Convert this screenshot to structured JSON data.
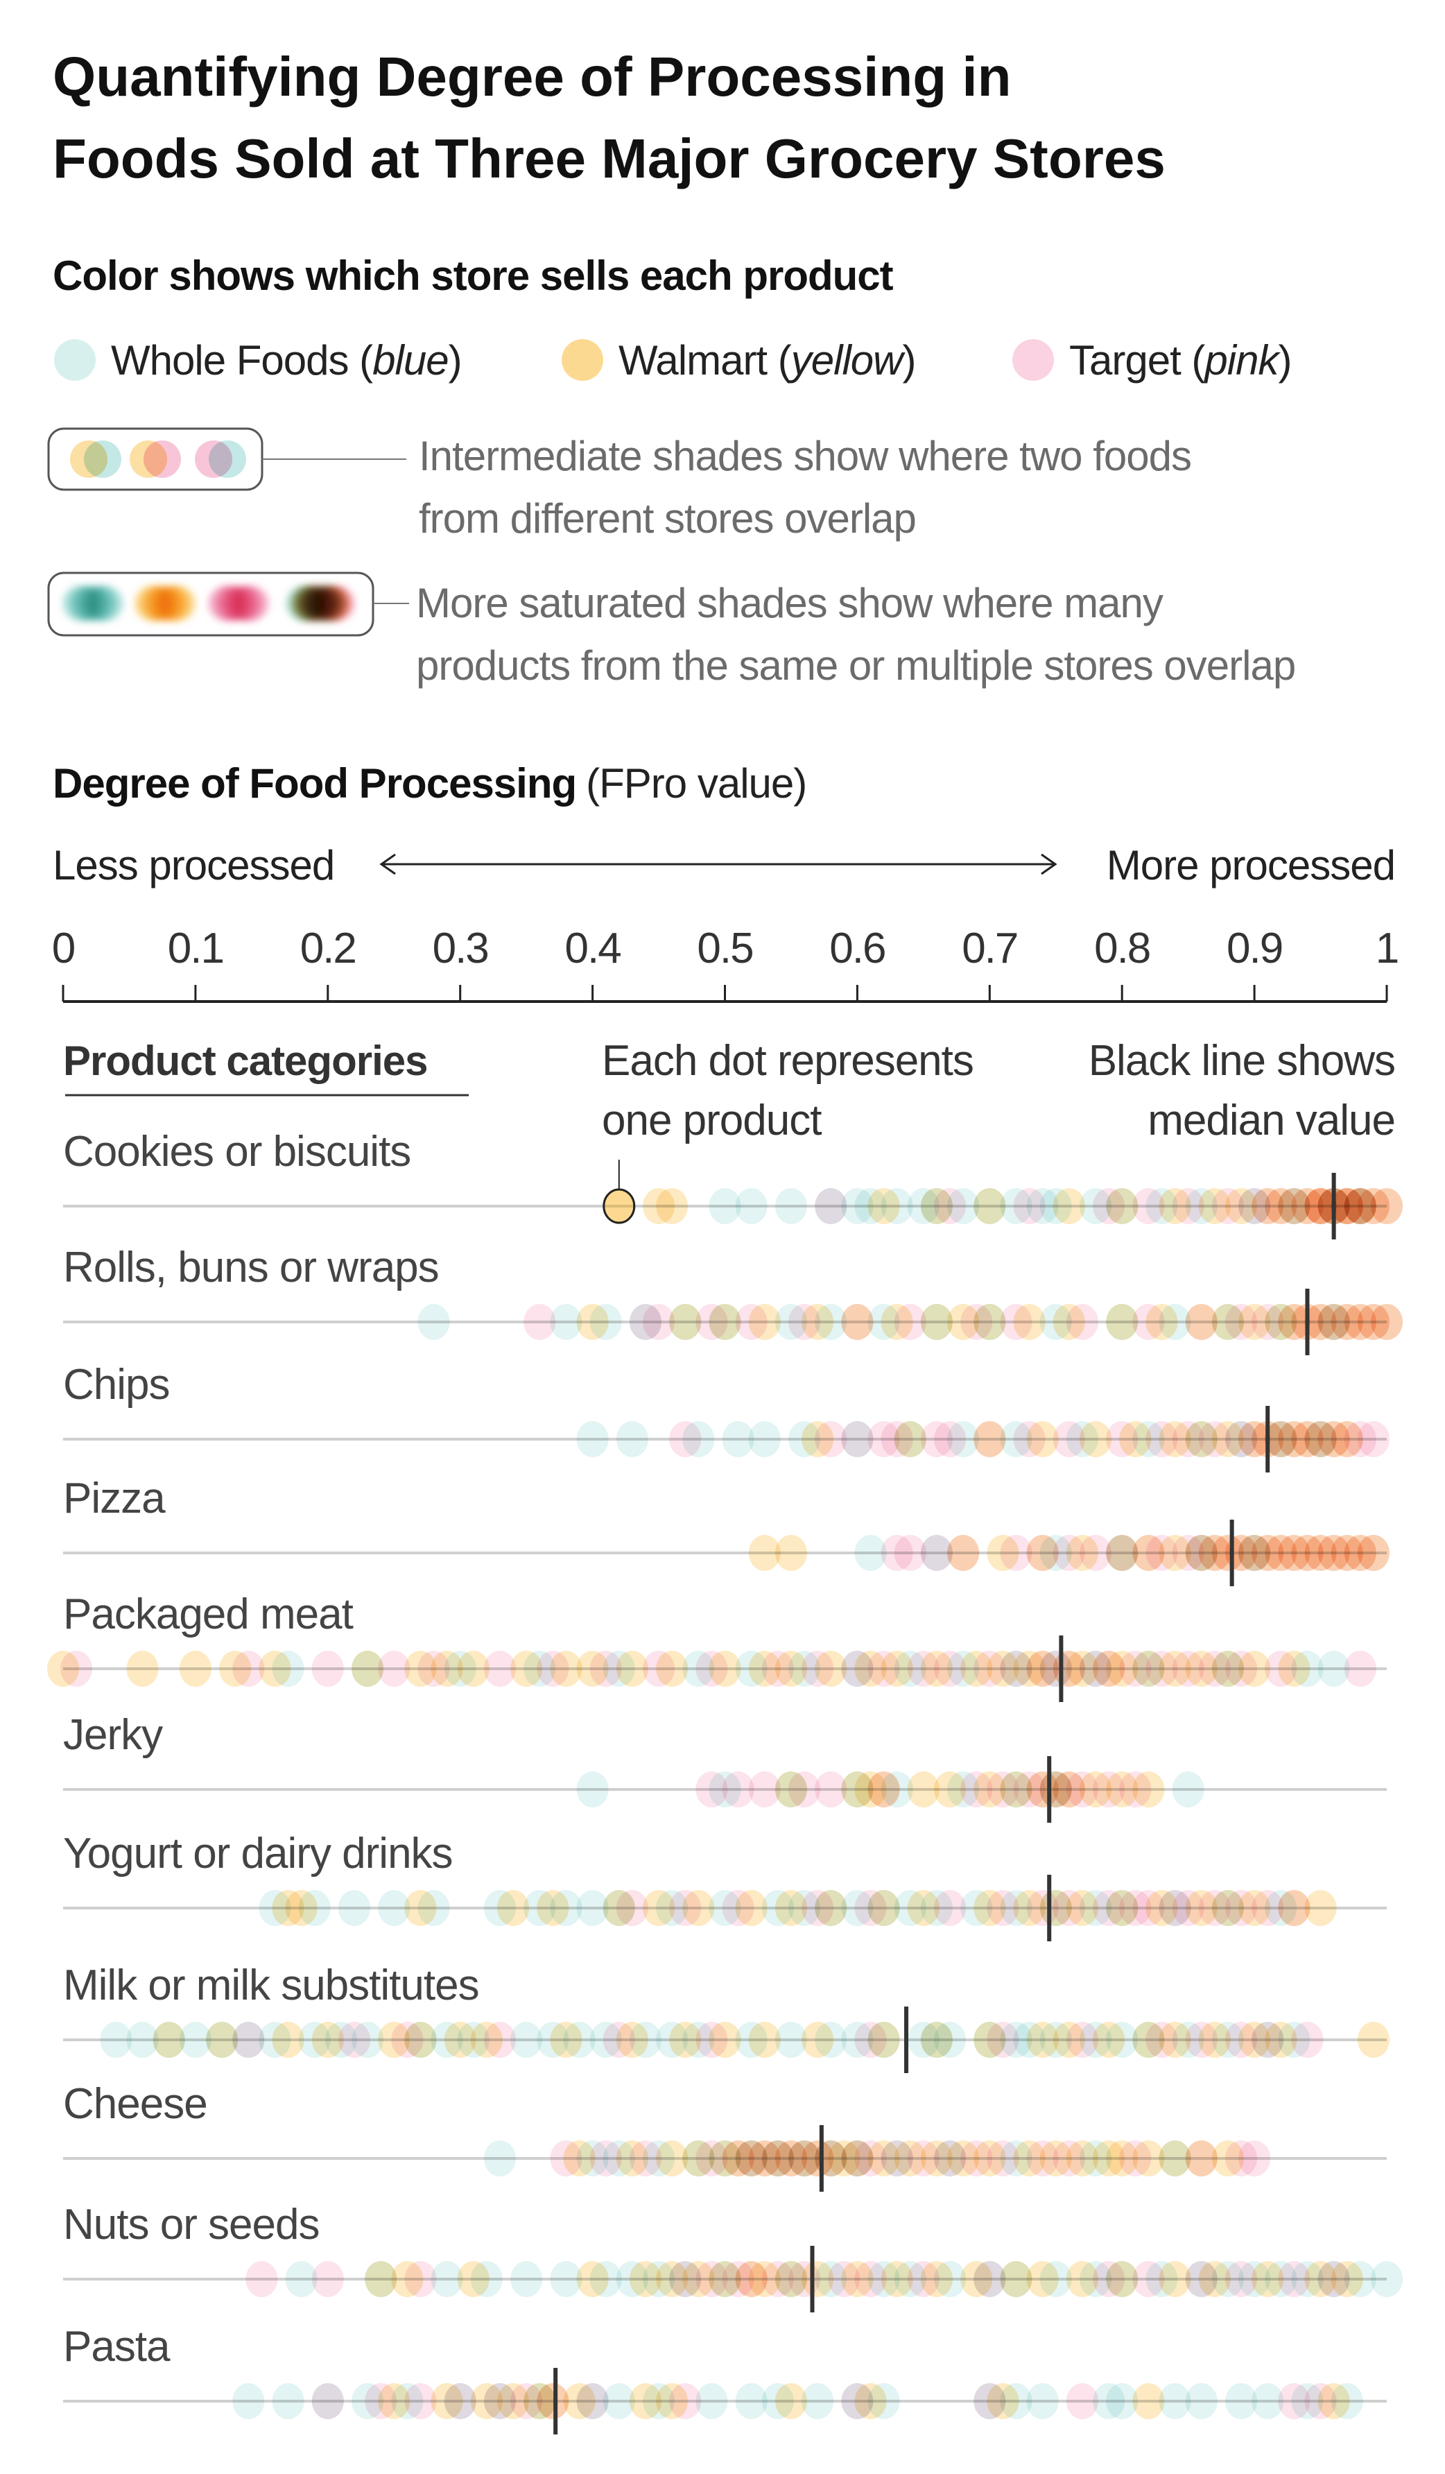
{
  "title": {
    "line1": "Quantifying Degree of Processing in",
    "line2": "Foods Sold at Three Major Grocery Stores"
  },
  "legend": {
    "heading": "Color shows which store sells each product",
    "stores": [
      {
        "name": "Whole Foods",
        "color_word": "blue",
        "color": "#7ccdc7"
      },
      {
        "name": "Walmart",
        "color_word": "yellow",
        "color": "#f9b934"
      },
      {
        "name": "Target",
        "color_word": "pink",
        "color": "#f07ea8"
      }
    ],
    "intermediate_line1": "Intermediate shades show where two foods",
    "intermediate_line2": "from different stores overlap",
    "saturated_line1": "More saturated shades show where many",
    "saturated_line2": "products from the same or multiple stores overlap"
  },
  "chart_data": {
    "type": "scatter",
    "title": "Degree of Food Processing",
    "title_suffix": "(FPro value)",
    "less_label": "Less processed",
    "more_label": "More processed",
    "xlim": [
      0,
      1
    ],
    "ticks": [
      "0",
      "0.1",
      "0.2",
      "0.3",
      "0.4",
      "0.5",
      "0.6",
      "0.7",
      "0.8",
      "0.9",
      "1"
    ],
    "categories_heading": "Product categories",
    "annotation_dot": "Each dot represents one product",
    "annotation_dot_line1": "Each dot represents",
    "annotation_dot_line2": "one product",
    "annotation_median_line1": "Black line shows",
    "annotation_median_line2": "median value",
    "highlighted_product": {
      "category": "Cookies or biscuits",
      "store": "Walmart",
      "value": 0.42
    },
    "median_color": "#333333",
    "categories": [
      {
        "name": "Cookies or biscuits",
        "median": 0.96,
        "whole_foods": [
          0.5,
          0.52,
          0.55,
          0.58,
          0.6,
          0.61,
          0.63,
          0.65,
          0.66,
          0.68,
          0.7,
          0.72,
          0.74,
          0.75,
          0.78,
          0.8,
          0.83,
          0.86,
          0.9,
          0.93,
          0.96,
          0.98
        ],
        "walmart": [
          0.42,
          0.45,
          0.46,
          0.62,
          0.66,
          0.7,
          0.76,
          0.8,
          0.84,
          0.87,
          0.89,
          0.91,
          0.92,
          0.93,
          0.94,
          0.95,
          0.95,
          0.96,
          0.96,
          0.97,
          0.97,
          0.98,
          0.98,
          0.99,
          1.0
        ],
        "target": [
          0.58,
          0.67,
          0.73,
          0.79,
          0.82,
          0.85,
          0.88,
          0.9,
          0.91,
          0.92,
          0.93,
          0.94,
          0.95,
          0.95,
          0.96,
          0.96,
          0.97,
          0.97,
          0.98,
          0.98,
          0.99,
          1.0
        ]
      },
      {
        "name": "Rolls, buns or wraps",
        "median": 0.94,
        "whole_foods": [
          0.28,
          0.38,
          0.41,
          0.44,
          0.47,
          0.5,
          0.55,
          0.58,
          0.62,
          0.66,
          0.7,
          0.75,
          0.8,
          0.84,
          0.88,
          0.92,
          0.96
        ],
        "walmart": [
          0.4,
          0.47,
          0.5,
          0.53,
          0.57,
          0.6,
          0.63,
          0.66,
          0.68,
          0.7,
          0.73,
          0.76,
          0.8,
          0.83,
          0.86,
          0.88,
          0.9,
          0.92,
          0.93,
          0.94,
          0.95,
          0.96,
          0.97,
          0.98,
          0.99,
          1.0
        ],
        "target": [
          0.36,
          0.44,
          0.45,
          0.49,
          0.52,
          0.56,
          0.6,
          0.64,
          0.69,
          0.72,
          0.77,
          0.82,
          0.86,
          0.89,
          0.91,
          0.93,
          0.94,
          0.95,
          0.96,
          0.97,
          0.98,
          0.99,
          1.0
        ]
      },
      {
        "name": "Chips",
        "median": 0.91,
        "whole_foods": [
          0.4,
          0.43,
          0.48,
          0.51,
          0.53,
          0.56,
          0.6,
          0.64,
          0.68,
          0.72,
          0.77,
          0.82,
          0.86,
          0.89,
          0.92,
          0.95
        ],
        "walmart": [
          0.57,
          0.64,
          0.7,
          0.74,
          0.78,
          0.81,
          0.84,
          0.86,
          0.88,
          0.9,
          0.91,
          0.92,
          0.93,
          0.94,
          0.95,
          0.96,
          0.97
        ],
        "target": [
          0.47,
          0.58,
          0.6,
          0.62,
          0.63,
          0.66,
          0.67,
          0.7,
          0.73,
          0.76,
          0.8,
          0.83,
          0.85,
          0.87,
          0.89,
          0.9,
          0.91,
          0.92,
          0.93,
          0.94,
          0.95,
          0.96,
          0.97,
          0.98,
          0.99
        ]
      },
      {
        "name": "Pizza",
        "median": 0.883,
        "whole_foods": [
          0.61,
          0.66,
          0.75,
          0.8,
          0.86,
          0.9
        ],
        "walmart": [
          0.53,
          0.55,
          0.68,
          0.71,
          0.74,
          0.77,
          0.8,
          0.82,
          0.84,
          0.86,
          0.87,
          0.88,
          0.89,
          0.9,
          0.91,
          0.92,
          0.93,
          0.94,
          0.95,
          0.96,
          0.97,
          0.98,
          0.99
        ],
        "target": [
          0.63,
          0.64,
          0.66,
          0.68,
          0.72,
          0.74,
          0.76,
          0.78,
          0.8,
          0.82,
          0.83,
          0.85,
          0.86,
          0.87,
          0.88,
          0.89,
          0.9,
          0.91,
          0.92,
          0.93,
          0.94,
          0.95,
          0.96,
          0.97,
          0.98,
          0.99
        ]
      },
      {
        "name": "Packaged meat",
        "median": 0.754,
        "whole_foods": [
          0.17,
          0.23,
          0.3,
          0.36,
          0.42,
          0.48,
          0.52,
          0.56,
          0.6,
          0.64,
          0.68,
          0.72,
          0.75,
          0.78,
          0.82,
          0.88,
          0.94,
          0.96
        ],
        "walmart": [
          0.0,
          0.06,
          0.1,
          0.13,
          0.16,
          0.23,
          0.27,
          0.29,
          0.31,
          0.35,
          0.38,
          0.4,
          0.43,
          0.46,
          0.5,
          0.53,
          0.55,
          0.58,
          0.61,
          0.63,
          0.66,
          0.69,
          0.71,
          0.73,
          0.74,
          0.76,
          0.77,
          0.79,
          0.8,
          0.82,
          0.84,
          0.86,
          0.88,
          0.9,
          0.93
        ],
        "target": [
          0.01,
          0.14,
          0.2,
          0.25,
          0.28,
          0.33,
          0.37,
          0.41,
          0.45,
          0.49,
          0.54,
          0.57,
          0.6,
          0.62,
          0.65,
          0.67,
          0.7,
          0.72,
          0.74,
          0.75,
          0.76,
          0.78,
          0.79,
          0.81,
          0.83,
          0.85,
          0.87,
          0.89,
          0.92,
          0.98
        ]
      },
      {
        "name": "Jerky",
        "median": 0.745,
        "whole_foods": [
          0.4,
          0.5,
          0.55,
          0.6,
          0.63,
          0.68,
          0.72,
          0.75,
          0.85
        ],
        "walmart": [
          0.55,
          0.6,
          0.61,
          0.62,
          0.65,
          0.67,
          0.7,
          0.72,
          0.74,
          0.75,
          0.76,
          0.78,
          0.8,
          0.82
        ],
        "target": [
          0.49,
          0.51,
          0.53,
          0.56,
          0.58,
          0.62,
          0.69,
          0.71,
          0.73,
          0.74,
          0.75,
          0.76,
          0.77,
          0.79,
          0.81
        ]
      },
      {
        "name": "Yogurt or dairy drinks",
        "median": 0.745,
        "whole_foods": [
          0.16,
          0.19,
          0.22,
          0.25,
          0.28,
          0.33,
          0.36,
          0.38,
          0.4,
          0.42,
          0.46,
          0.5,
          0.54,
          0.56,
          0.58,
          0.6,
          0.62,
          0.64,
          0.66,
          0.69,
          0.72,
          0.75,
          0.78,
          0.8,
          0.84,
          0.88,
          0.92
        ],
        "walmart": [
          0.17,
          0.18,
          0.27,
          0.34,
          0.37,
          0.42,
          0.45,
          0.48,
          0.52,
          0.55,
          0.58,
          0.62,
          0.65,
          0.7,
          0.73,
          0.75,
          0.77,
          0.8,
          0.83,
          0.86,
          0.88,
          0.9,
          0.93,
          0.95
        ],
        "target": [
          0.43,
          0.47,
          0.51,
          0.57,
          0.61,
          0.67,
          0.71,
          0.74,
          0.76,
          0.79,
          0.81,
          0.82,
          0.84,
          0.85,
          0.87,
          0.89,
          0.91,
          0.93
        ]
      },
      {
        "name": "Milk or milk substitutes",
        "median": 0.637,
        "whole_foods": [
          0.04,
          0.06,
          0.08,
          0.1,
          0.12,
          0.14,
          0.16,
          0.19,
          0.21,
          0.23,
          0.27,
          0.29,
          0.31,
          0.35,
          0.37,
          0.39,
          0.41,
          0.44,
          0.46,
          0.48,
          0.52,
          0.55,
          0.58,
          0.6,
          0.62,
          0.65,
          0.66,
          0.67,
          0.7,
          0.72,
          0.73,
          0.75,
          0.78,
          0.8,
          0.82,
          0.85,
          0.88,
          0.91,
          0.93
        ],
        "walmart": [
          0.08,
          0.12,
          0.17,
          0.2,
          0.25,
          0.27,
          0.3,
          0.32,
          0.38,
          0.43,
          0.47,
          0.5,
          0.53,
          0.57,
          0.62,
          0.66,
          0.7,
          0.74,
          0.76,
          0.79,
          0.82,
          0.84,
          0.87,
          0.9,
          0.92,
          0.99
        ],
        "target": [
          0.14,
          0.22,
          0.26,
          0.33,
          0.42,
          0.49,
          0.61,
          0.71,
          0.77,
          0.83,
          0.86,
          0.89,
          0.91,
          0.94
        ]
      },
      {
        "name": "Cheese",
        "median": 0.573,
        "whole_foods": [
          0.33,
          0.4,
          0.42,
          0.45,
          0.48,
          0.5,
          0.52,
          0.54,
          0.56,
          0.58,
          0.6,
          0.63,
          0.67,
          0.72,
          0.78,
          0.84
        ],
        "walmart": [
          0.39,
          0.43,
          0.46,
          0.48,
          0.5,
          0.51,
          0.52,
          0.53,
          0.54,
          0.55,
          0.56,
          0.57,
          0.58,
          0.59,
          0.6,
          0.62,
          0.64,
          0.66,
          0.68,
          0.7,
          0.73,
          0.75,
          0.77,
          0.79,
          0.8,
          0.82,
          0.84,
          0.86,
          0.88
        ],
        "target": [
          0.38,
          0.41,
          0.44,
          0.49,
          0.51,
          0.52,
          0.53,
          0.54,
          0.55,
          0.56,
          0.57,
          0.58,
          0.6,
          0.61,
          0.63,
          0.65,
          0.67,
          0.69,
          0.71,
          0.74,
          0.76,
          0.81,
          0.86,
          0.89,
          0.9
        ]
      },
      {
        "name": "Nuts or seeds",
        "median": 0.566,
        "whole_foods": [
          0.18,
          0.24,
          0.29,
          0.32,
          0.35,
          0.38,
          0.41,
          0.43,
          0.45,
          0.47,
          0.5,
          0.55,
          0.58,
          0.62,
          0.64,
          0.67,
          0.7,
          0.72,
          0.75,
          0.78,
          0.8,
          0.83,
          0.86,
          0.88,
          0.9,
          0.92,
          0.94,
          0.96,
          0.98,
          1.0
        ],
        "walmart": [
          0.24,
          0.26,
          0.31,
          0.4,
          0.44,
          0.46,
          0.48,
          0.5,
          0.52,
          0.53,
          0.55,
          0.57,
          0.6,
          0.63,
          0.66,
          0.69,
          0.72,
          0.74,
          0.77,
          0.8,
          0.84,
          0.87,
          0.91,
          0.95,
          0.97
        ],
        "target": [
          0.15,
          0.2,
          0.27,
          0.47,
          0.49,
          0.51,
          0.52,
          0.54,
          0.56,
          0.59,
          0.61,
          0.65,
          0.7,
          0.79,
          0.82,
          0.86,
          0.89,
          0.93,
          0.96
        ]
      },
      {
        "name": "Pasta",
        "median": 0.372,
        "whole_foods": [
          0.14,
          0.17,
          0.2,
          0.23,
          0.26,
          0.3,
          0.33,
          0.36,
          0.4,
          0.42,
          0.45,
          0.49,
          0.52,
          0.54,
          0.57,
          0.6,
          0.62,
          0.7,
          0.72,
          0.74,
          0.79,
          0.8,
          0.84,
          0.86,
          0.89,
          0.91,
          0.94,
          0.97
        ],
        "walmart": [
          0.25,
          0.29,
          0.32,
          0.34,
          0.36,
          0.37,
          0.39,
          0.44,
          0.46,
          0.55,
          0.61,
          0.71,
          0.82,
          0.96
        ],
        "target": [
          0.2,
          0.24,
          0.27,
          0.3,
          0.33,
          0.35,
          0.37,
          0.4,
          0.47,
          0.6,
          0.7,
          0.77,
          0.93,
          0.95
        ]
      }
    ]
  }
}
